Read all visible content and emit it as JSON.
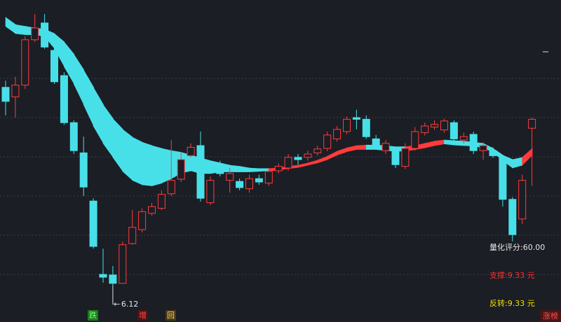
{
  "chart_data": {
    "type": "candlestick",
    "ylim": [
      5.46,
      11.21
    ],
    "up_color": "#ff3b3b",
    "down_color": "#48e0e8",
    "open": [
      9.65,
      9.48,
      9.69,
      10.5,
      10.8,
      10.31,
      9.86,
      9.02,
      8.48,
      7.62,
      6.31,
      6.3,
      6.15,
      6.86,
      7.11,
      7.4,
      7.49,
      7.75,
      8.01,
      8.43,
      8.61,
      7.59,
      8.27,
      7.99,
      7.97,
      7.84,
      8.02,
      7.94,
      8.16,
      8.21,
      8.4,
      8.4,
      8.48,
      8.56,
      8.73,
      8.86,
      9.11,
      9.08,
      8.73,
      8.52,
      8.52,
      8.24,
      8.56,
      8.84,
      8.94,
      8.89,
      9.02,
      8.71,
      8.81,
      8.52,
      8.52,
      8.4,
      7.65,
      7.3,
      8.92
    ],
    "high": [
      9.77,
      9.84,
      10.56,
      10.96,
      10.96,
      10.37,
      9.92,
      9.06,
      8.77,
      7.67,
      6.77,
      6.46,
      6.9,
      7.46,
      7.49,
      7.59,
      7.81,
      8.71,
      8.49,
      8.65,
      8.86,
      8.06,
      8.34,
      8.21,
      8.02,
      8.09,
      8.09,
      8.21,
      8.29,
      8.46,
      8.46,
      8.52,
      8.61,
      8.86,
      8.96,
      9.13,
      9.25,
      9.15,
      8.8,
      8.71,
      8.58,
      8.65,
      8.94,
      9.02,
      9.06,
      9.09,
      9.06,
      8.84,
      8.86,
      8.67,
      8.58,
      8.43,
      7.69,
      8.09,
      9.11
    ],
    "low": [
      9.15,
      9.11,
      9.62,
      10.46,
      10.34,
      9.71,
      8.98,
      8.46,
      7.71,
      6.77,
      6.16,
      6.12,
      6.16,
      6.84,
      7.06,
      7.36,
      7.46,
      7.71,
      7.96,
      8.4,
      7.61,
      7.55,
      8.06,
      7.77,
      7.81,
      7.77,
      7.91,
      7.89,
      8.11,
      8.16,
      8.27,
      8.34,
      8.43,
      8.51,
      8.68,
      8.81,
      8.9,
      8.73,
      8.56,
      8.46,
      8.21,
      8.19,
      8.52,
      8.79,
      8.89,
      8.84,
      8.68,
      8.65,
      8.46,
      8.36,
      8.39,
      7.52,
      6.9,
      7.21,
      7.89
    ],
    "close": [
      9.4,
      9.69,
      10.5,
      10.71,
      10.37,
      9.75,
      9.02,
      8.52,
      7.87,
      6.81,
      6.26,
      6.15,
      6.84,
      7.15,
      7.43,
      7.52,
      7.74,
      7.99,
      8.36,
      8.58,
      7.67,
      7.99,
      8.11,
      8.11,
      7.86,
      8.02,
      7.96,
      8.15,
      8.24,
      8.4,
      8.36,
      8.46,
      8.55,
      8.8,
      8.9,
      9.08,
      9.08,
      8.77,
      8.61,
      8.65,
      8.27,
      8.56,
      8.86,
      8.96,
      8.99,
      9.05,
      8.73,
      8.77,
      8.52,
      8.61,
      8.43,
      7.65,
      7.02,
      7.99,
      9.08
    ],
    "band": {
      "upper": [
        10.9,
        10.77,
        10.74,
        10.71,
        10.69,
        10.61,
        10.46,
        10.24,
        9.96,
        9.65,
        9.34,
        9.09,
        8.9,
        8.76,
        8.67,
        8.61,
        8.56,
        8.52,
        8.49,
        8.44,
        8.39,
        8.34,
        8.3,
        8.26,
        8.24,
        8.21,
        8.2,
        8.2,
        8.21,
        8.24,
        8.26,
        8.3,
        8.35,
        8.42,
        8.51,
        8.57,
        8.61,
        8.62,
        8.62,
        8.61,
        8.59,
        8.59,
        8.61,
        8.65,
        8.69,
        8.71,
        8.7,
        8.69,
        8.67,
        8.65,
        8.56,
        8.44,
        8.36,
        8.4,
        8.56
      ],
      "lower": [
        10.74,
        10.61,
        10.59,
        10.59,
        10.56,
        10.34,
        10.02,
        9.71,
        9.34,
        8.96,
        8.65,
        8.4,
        8.15,
        7.99,
        7.91,
        7.89,
        7.94,
        8.02,
        8.12,
        8.16,
        8.11,
        8.11,
        8.14,
        8.14,
        8.14,
        8.14,
        8.15,
        8.16,
        8.17,
        8.2,
        8.22,
        8.26,
        8.3,
        8.36,
        8.44,
        8.5,
        8.54,
        8.54,
        8.54,
        8.52,
        8.51,
        8.51,
        8.54,
        8.57,
        8.61,
        8.64,
        8.62,
        8.61,
        8.6,
        8.57,
        8.49,
        8.34,
        8.21,
        8.26,
        8.44
      ]
    },
    "score_label": "量化评分:60.00",
    "support_label": "支撑:9.33 元",
    "reversal_label": "反转:9.33 元",
    "signals": [
      "跌",
      "增",
      "回"
    ],
    "rank_label": "涨榜"
  }
}
